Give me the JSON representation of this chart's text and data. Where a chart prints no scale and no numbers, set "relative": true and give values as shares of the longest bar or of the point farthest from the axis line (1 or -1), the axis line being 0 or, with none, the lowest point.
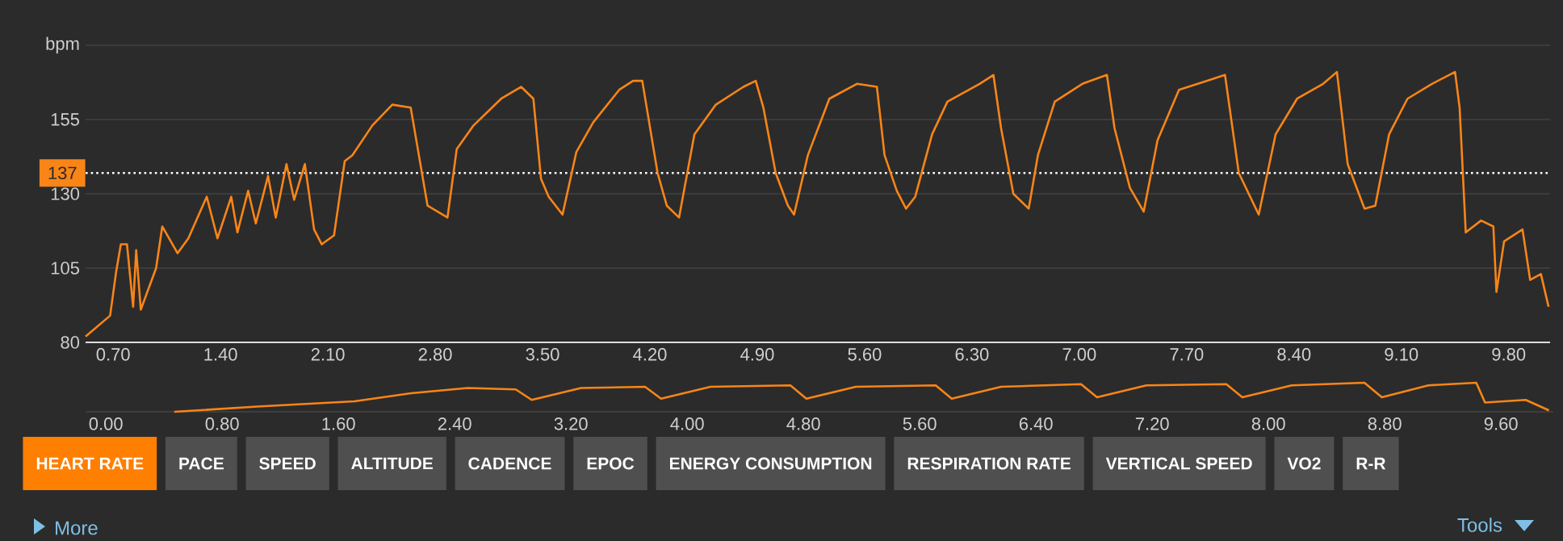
{
  "chart_data": [
    {
      "type": "line",
      "x": [
        0.52,
        0.68,
        0.72,
        0.75,
        0.79,
        0.83,
        0.85,
        0.88,
        0.98,
        1.02,
        1.12,
        1.19,
        1.31,
        1.38,
        1.47,
        1.51,
        1.58,
        1.63,
        1.71,
        1.76,
        1.83,
        1.88,
        1.95,
        2.01,
        2.06,
        2.14,
        2.21,
        2.26,
        2.39,
        2.52,
        2.64,
        2.75,
        2.88,
        2.94,
        3.05,
        3.23,
        3.36,
        3.44,
        3.49,
        3.54,
        3.63,
        3.72,
        3.83,
        4.0,
        4.09,
        4.15,
        4.25,
        4.31,
        4.39,
        4.49,
        4.63,
        4.81,
        4.89,
        4.94,
        5.02,
        5.1,
        5.14,
        5.23,
        5.37,
        5.55,
        5.68,
        5.73,
        5.81,
        5.87,
        5.93,
        6.04,
        6.14,
        6.35,
        6.44,
        6.49,
        6.57,
        6.67,
        6.73,
        6.84,
        7.02,
        7.18,
        7.23,
        7.33,
        7.42,
        7.51,
        7.65,
        7.83,
        7.95,
        8.04,
        8.17,
        8.28,
        8.42,
        8.59,
        8.68,
        8.75,
        8.86,
        8.93,
        9.02,
        9.14,
        9.3,
        9.45,
        9.48,
        9.52,
        9.62,
        9.7,
        9.72,
        9.77,
        9.89,
        9.94,
        10.01,
        10.06
      ],
      "series": [
        {
          "color": "#f98517",
          "values": [
            82,
            89,
            104,
            113,
            113,
            92,
            111,
            91,
            105,
            119,
            110,
            115,
            129,
            115,
            129,
            117,
            131,
            120,
            136,
            122,
            140,
            128,
            140,
            118,
            113,
            116,
            141,
            143,
            153,
            160,
            159,
            126,
            122,
            145,
            153,
            162,
            166,
            162,
            135,
            129,
            123,
            144,
            154,
            165,
            168,
            168,
            137,
            126,
            122,
            150,
            160,
            166,
            168,
            159,
            137,
            126,
            123,
            143,
            162,
            167,
            166,
            143,
            131,
            125,
            129,
            150,
            161,
            167,
            170,
            152,
            130,
            125,
            143,
            161,
            167,
            170,
            152,
            132,
            124,
            148,
            165,
            168,
            170,
            137,
            123,
            150,
            162,
            167,
            171,
            140,
            125,
            126,
            150,
            162,
            167,
            171,
            159,
            117,
            121,
            119,
            97,
            114,
            118,
            101,
            103,
            92
          ]
        }
      ],
      "xlim": [
        0.52,
        10.07
      ],
      "xticks": [
        {
          "value": 0.7,
          "label": "0.70"
        },
        {
          "value": 1.4,
          "label": "1.40"
        },
        {
          "value": 2.1,
          "label": "2.10"
        },
        {
          "value": 2.8,
          "label": "2.80"
        },
        {
          "value": 3.5,
          "label": "3.50"
        },
        {
          "value": 4.2,
          "label": "4.20"
        },
        {
          "value": 4.9,
          "label": "4.90"
        },
        {
          "value": 5.6,
          "label": "5.60"
        },
        {
          "value": 6.3,
          "label": "6.30"
        },
        {
          "value": 7.0,
          "label": "7.00"
        },
        {
          "value": 7.7,
          "label": "7.70"
        },
        {
          "value": 8.4,
          "label": "8.40"
        },
        {
          "value": 9.1,
          "label": "9.10"
        },
        {
          "value": 9.8,
          "label": "9.80"
        }
      ],
      "ylim": [
        80,
        180
      ],
      "yticks": [
        80,
        105,
        130,
        155,
        {
          "value": 180,
          "label": "bpm"
        }
      ],
      "grid": "y",
      "ref_lines": [
        {
          "axis": "y",
          "value": 137,
          "label": "137",
          "color": "#ffffff",
          "line_style": "dotted"
        }
      ]
    },
    {
      "type": "line",
      "relative": true,
      "tick_labels": "x",
      "x": [
        0.47,
        1.04,
        1.71,
        2.1,
        2.49,
        2.82,
        2.93,
        3.27,
        3.71,
        3.82,
        4.16,
        4.71,
        4.82,
        5.16,
        5.71,
        5.82,
        6.16,
        6.71,
        6.82,
        7.16,
        7.71,
        7.82,
        8.16,
        8.66,
        8.78,
        9.1,
        9.43,
        9.49,
        9.77,
        9.93
      ],
      "series": [
        {
          "color": "#f98517",
          "values": [
            0,
            0.18,
            0.36,
            0.64,
            0.82,
            0.77,
            0.41,
            0.82,
            0.86,
            0.45,
            0.86,
            0.91,
            0.45,
            0.86,
            0.91,
            0.45,
            0.86,
            0.95,
            0.5,
            0.91,
            0.95,
            0.5,
            0.91,
            1,
            0.5,
            0.91,
            1,
            0.32,
            0.41,
            0.05
          ]
        }
      ],
      "xlim": [
        -0.14,
        9.96
      ],
      "xticks": [
        {
          "value": 0,
          "label": "0.00"
        },
        {
          "value": 0.8,
          "label": "0.80"
        },
        {
          "value": 1.6,
          "label": "1.60"
        },
        {
          "value": 2.4,
          "label": "2.40"
        },
        {
          "value": 3.2,
          "label": "3.20"
        },
        {
          "value": 4.0,
          "label": "4.00"
        },
        {
          "value": 4.8,
          "label": "4.80"
        },
        {
          "value": 5.6,
          "label": "5.60"
        },
        {
          "value": 6.4,
          "label": "6.40"
        },
        {
          "value": 7.2,
          "label": "7.20"
        },
        {
          "value": 8.0,
          "label": "8.00"
        },
        {
          "value": 8.8,
          "label": "8.80"
        },
        {
          "value": 9.6,
          "label": "9.60"
        }
      ]
    },
    {
      "type": "other",
      "annotations": [
        "HEART RATE",
        "PACE",
        "SPEED",
        "ALTITUDE",
        "CADENCE",
        "EPOC",
        "ENERGY CONSUMPTION",
        "RESPIRATION RATE",
        "VERTICAL SPEED",
        "VO2",
        "R-R",
        "More",
        "Tools"
      ]
    }
  ]
}
